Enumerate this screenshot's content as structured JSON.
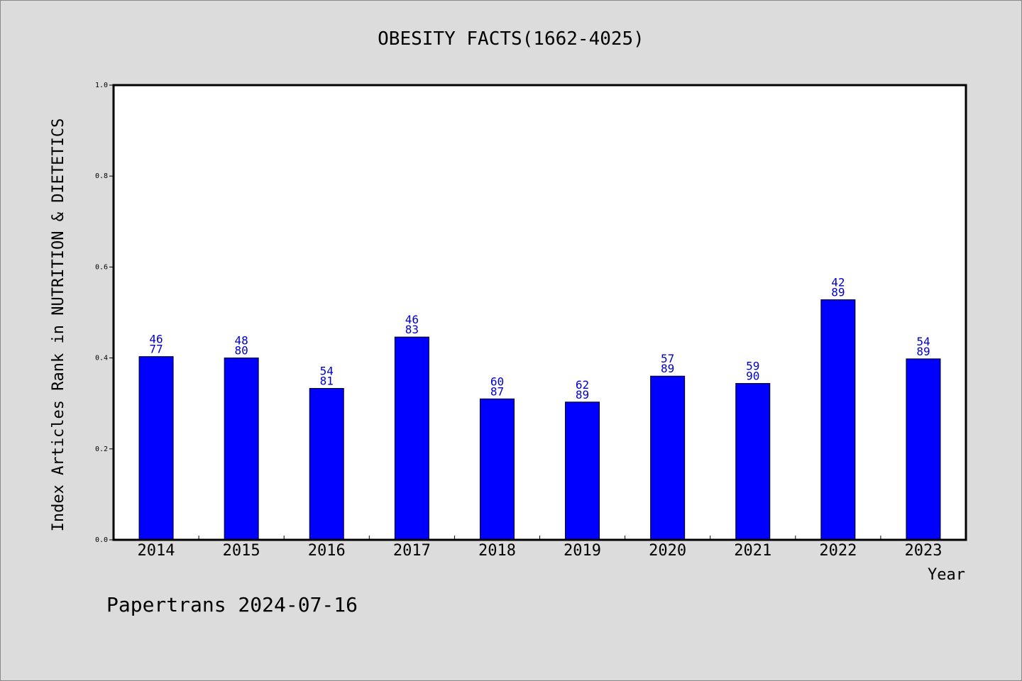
{
  "page": {
    "background": "#dcdcdc",
    "footer": "Papertrans 2024-07-16"
  },
  "chart_data": {
    "type": "bar",
    "title": "OBESITY FACTS(1662-4025)",
    "xlabel": "Year",
    "ylabel": "Index Articles Rank in NUTRITION & DIETETICS",
    "ylim": [
      0,
      1.0
    ],
    "yticks": [
      0.0,
      0.2,
      0.4,
      0.6,
      0.8,
      1.0
    ],
    "ytick_labels": [
      "0.0",
      "0.2",
      "0.4",
      "0.6",
      "0.8",
      "1.0"
    ],
    "categories": [
      "2014",
      "2015",
      "2016",
      "2017",
      "2018",
      "2019",
      "2020",
      "2021",
      "2022",
      "2023"
    ],
    "series": [
      {
        "values": [
          0.403,
          0.4,
          0.333,
          0.446,
          0.31,
          0.303,
          0.36,
          0.344,
          0.528,
          0.398
        ],
        "labels_top": [
          "46",
          "48",
          "54",
          "46",
          "60",
          "62",
          "57",
          "59",
          "42",
          "54"
        ],
        "labels_bottom": [
          "77",
          "80",
          "81",
          "83",
          "87",
          "89",
          "89",
          "90",
          "89",
          "89"
        ],
        "color": "#0000ff"
      }
    ],
    "label_color": "#0000cc",
    "grid": false,
    "legend": "none"
  }
}
